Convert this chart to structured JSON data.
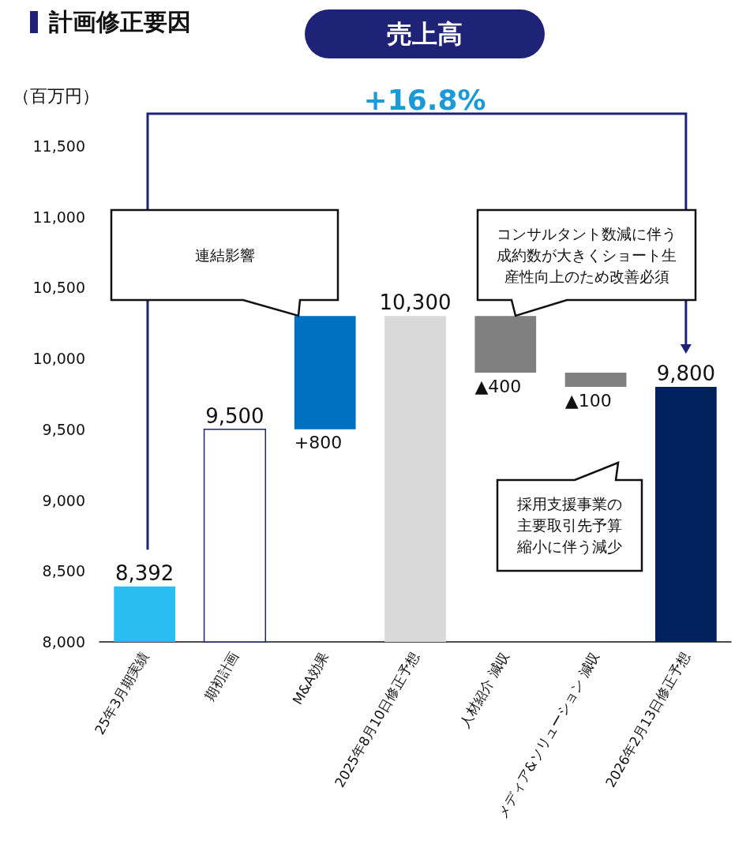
{
  "chart_data": {
    "type": "bar",
    "title": "計画修正要因",
    "subtitle": "売上高",
    "ylabel": "（百万円）",
    "categories": [
      "25年3月期実績",
      "期初計画",
      "M&A効果",
      "2025年8月10日修正予想",
      "人材紹介 減収",
      "メディア&ソリューション 減収",
      "2026年2月13日修正予想"
    ],
    "values": [
      8392,
      9500,
      800,
      10300,
      400,
      100,
      9800
    ],
    "base": [
      null,
      null,
      9500,
      null,
      9900,
      9800,
      null
    ],
    "colors": [
      "#29bdf2",
      "#ffffff",
      "#0070c0",
      "#d9d9d9",
      "#808080",
      "#808080",
      "#00215c"
    ],
    "value_labels": [
      "8,392",
      "9,500",
      "+800",
      "10,300",
      "▲400",
      "▲100",
      "9,800"
    ],
    "ylim": [
      8000,
      11500
    ],
    "yticks": [
      {
        "value": 8000,
        "label": "8,000"
      },
      {
        "value": 8500,
        "label": "8,500"
      },
      {
        "value": 9000,
        "label": "9,000"
      },
      {
        "value": 9500,
        "label": "9,500"
      },
      {
        "value": 10000,
        "label": "10,000"
      },
      {
        "value": 10500,
        "label": "10,500"
      },
      {
        "value": 11000,
        "label": "11,000"
      },
      {
        "value": 11500,
        "label": "11,500"
      }
    ],
    "grid": false,
    "annotations": [
      "+16.8%",
      "連結影響",
      "コンサルタント数減に伴う成約数が大きくショート生産性向上のため改善必須",
      "採用支援事業の主要取引先予算縮小に伴う減少"
    ]
  }
}
